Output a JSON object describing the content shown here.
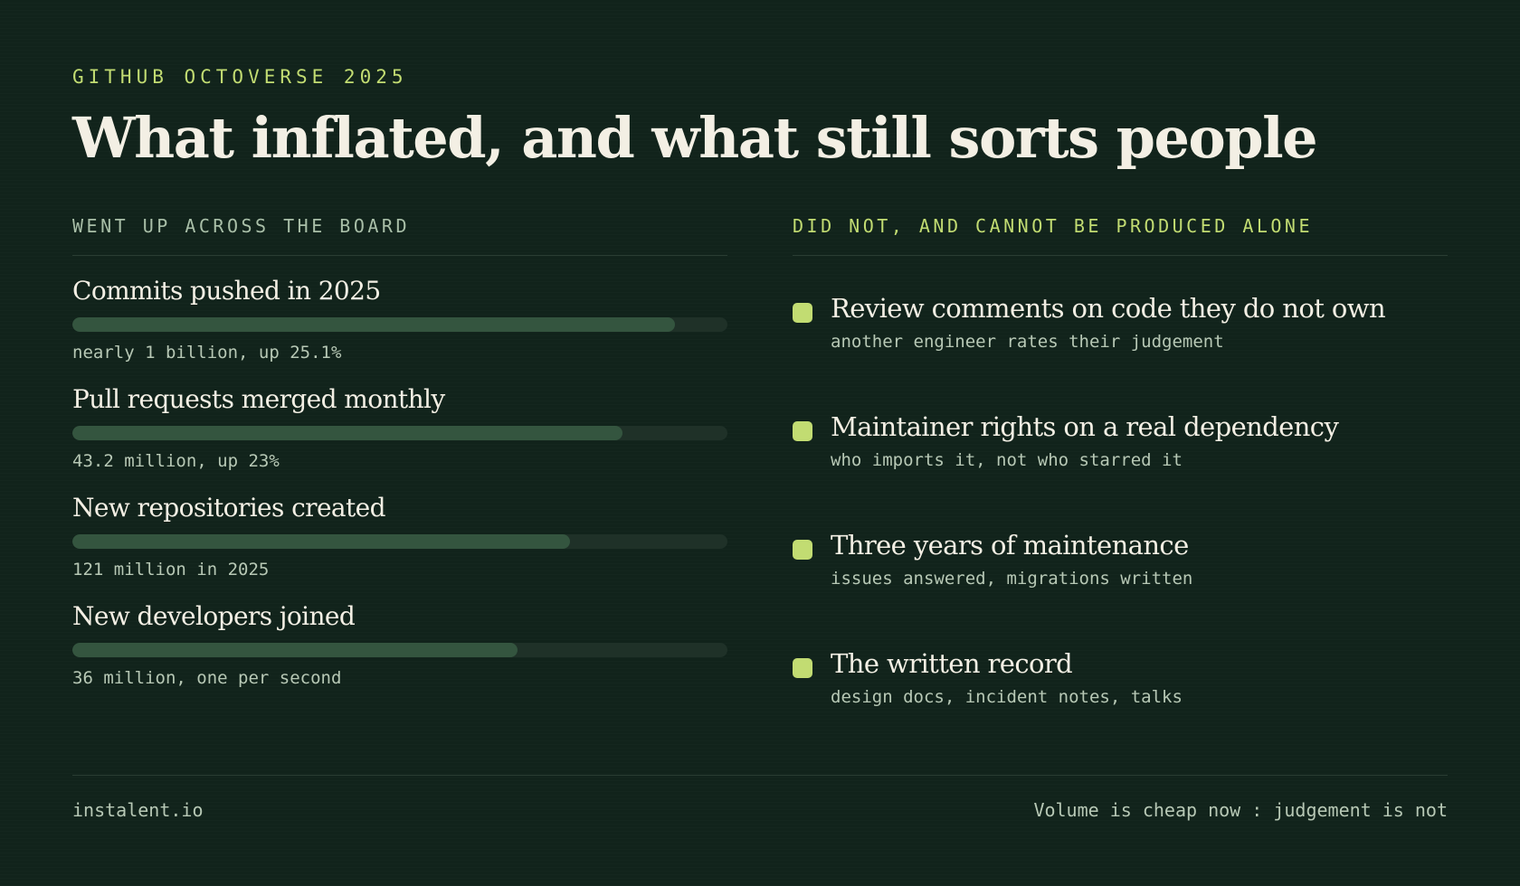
{
  "header": {
    "eyebrow": "GITHUB OCTOVERSE 2025",
    "title": "What inflated, and what still sorts people"
  },
  "left": {
    "heading": "WENT UP ACROSS THE BOARD",
    "metrics": [
      {
        "label": "Commits pushed in 2025",
        "note": "nearly 1 billion, up 25.1%",
        "fill": 0.92
      },
      {
        "label": "Pull requests merged monthly",
        "note": "43.2 million, up 23%",
        "fill": 0.84
      },
      {
        "label": "New repositories created",
        "note": "121 million in 2025",
        "fill": 0.76
      },
      {
        "label": "New developers joined",
        "note": "36 million, one per second",
        "fill": 0.68
      }
    ]
  },
  "right": {
    "heading": "DID NOT, AND CANNOT BE PRODUCED ALONE",
    "items": [
      {
        "title": "Review comments on code they do not own",
        "note": "another engineer rates their judgement"
      },
      {
        "title": "Maintainer rights on a real dependency",
        "note": "who imports it, not who starred it"
      },
      {
        "title": "Three years of maintenance",
        "note": "issues answered, migrations written"
      },
      {
        "title": "The written record",
        "note": "design docs, incident notes, talks"
      }
    ]
  },
  "footer": {
    "site": "instalent.io",
    "tagline": "Volume is cheap now : judgement is not"
  },
  "colors": {
    "background": "#11231b",
    "accent": "#c2dc72",
    "bar_fill": "#34553f",
    "bar_track": "#1f3128"
  }
}
